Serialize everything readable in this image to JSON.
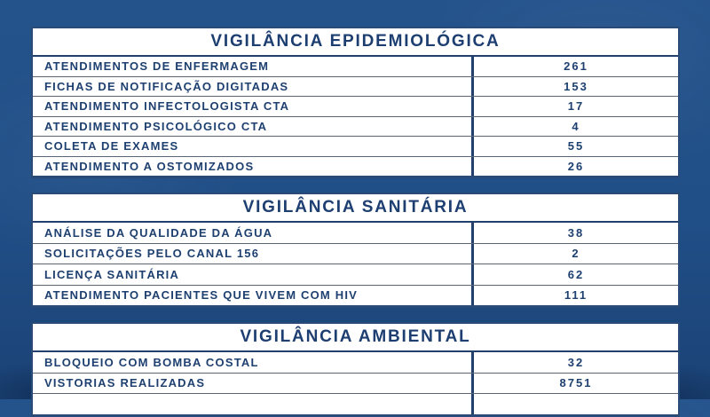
{
  "colors": {
    "background": "#1f4d87",
    "panel": "#ffffff",
    "text_navy": "#1d3e70",
    "border_strong": "#23406d",
    "border_light": "#5a6576"
  },
  "sections": [
    {
      "title": "VIGILÂNCIA EPIDEMIOLÓGICA",
      "rows": [
        {
          "label": "ATENDIMENTOS DE ENFERMAGEM",
          "value": "261"
        },
        {
          "label": "FICHAS DE NOTIFICAÇÃO DIGITADAS",
          "value": "153"
        },
        {
          "label": "ATENDIMENTO INFECTOLOGISTA CTA",
          "value": "17"
        },
        {
          "label": "ATENDIMENTO PSICOLÓGICO CTA",
          "value": "4"
        },
        {
          "label": "COLETA DE EXAMES",
          "value": "55"
        },
        {
          "label": "ATENDIMENTO A OSTOMIZADOS",
          "value": "26"
        }
      ]
    },
    {
      "title": "VIGILÂNCIA SANITÁRIA",
      "rows": [
        {
          "label": "ANÁLISE DA QUALIDADE DA ÁGUA",
          "value": "38"
        },
        {
          "label": "SOLICITAÇÕES PELO CANAL 156",
          "value": "2"
        },
        {
          "label": "LICENÇA SANITÁRIA",
          "value": "62"
        },
        {
          "label": "ATENDIMENTO PACIENTES QUE VIVEM COM HIV",
          "value": "111"
        }
      ]
    },
    {
      "title": "VIGILÂNCIA AMBIENTAL",
      "rows": [
        {
          "label": "BLOQUEIO COM BOMBA COSTAL",
          "value": "32"
        },
        {
          "label": "VISTORIAS REALIZADAS",
          "value": "8751"
        }
      ]
    }
  ]
}
